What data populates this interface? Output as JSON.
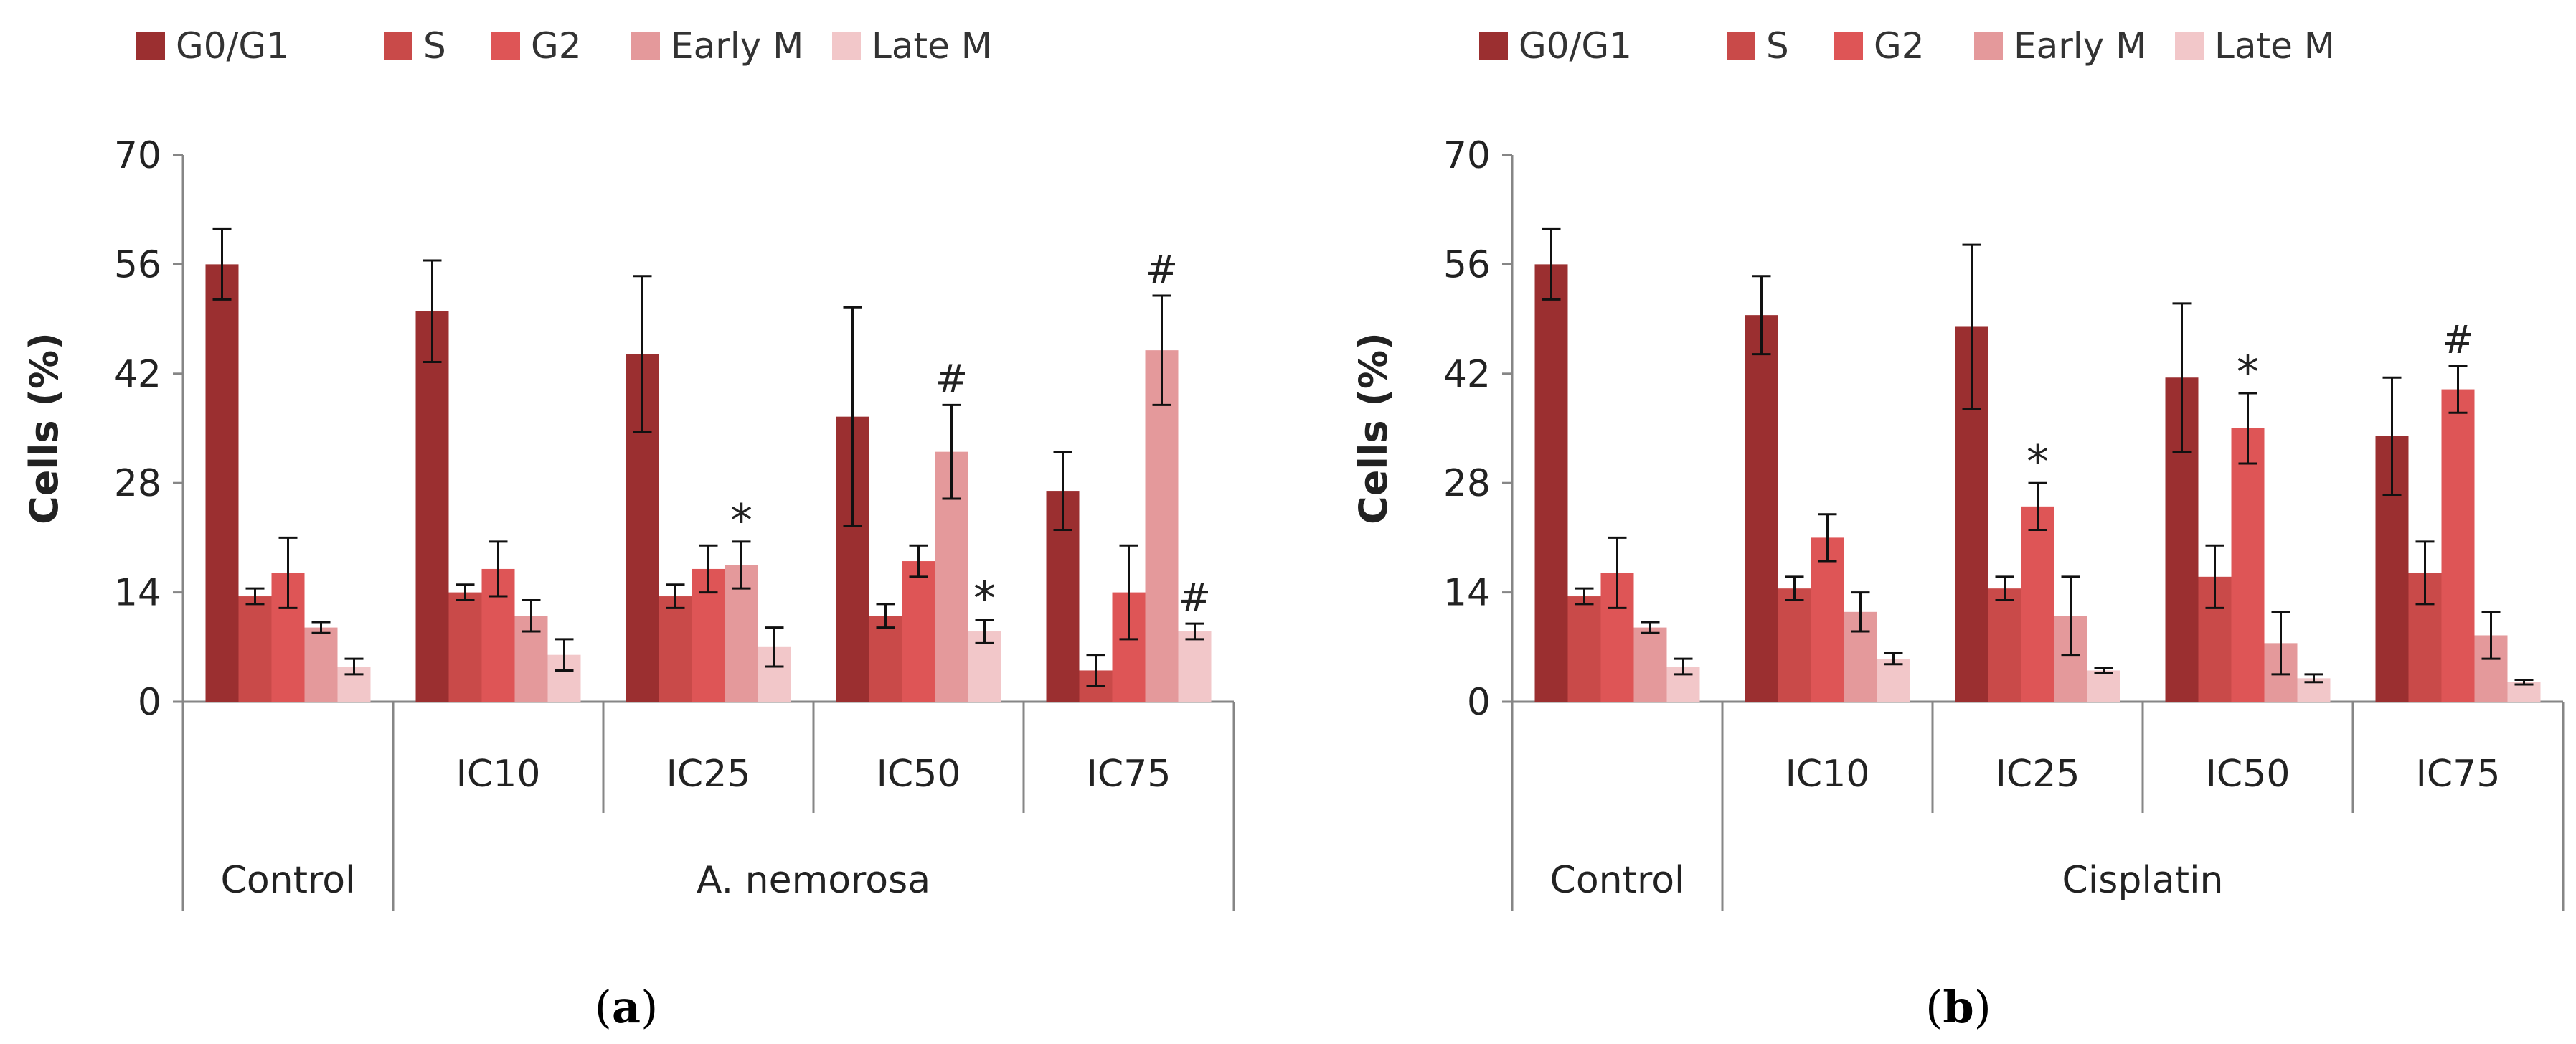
{
  "series_colors": [
    "#9b2f30",
    "#c94a49",
    "#de5556",
    "#e4999b",
    "#f2c7c9"
  ],
  "chart_data": [
    {
      "type": "bar",
      "panel_label": "a",
      "panel_label_open": "(",
      "panel_label_close": ")",
      "title": "",
      "xlabel": "",
      "ylabel": "Cells (%)",
      "ylim": [
        0,
        70
      ],
      "yticks": [
        "0",
        "14",
        "28",
        "42",
        "56",
        "70"
      ],
      "legend": [
        "G0/G1",
        "S",
        "G2",
        "Early M",
        "Late M"
      ],
      "group_labels": [
        "Control",
        "A. nemorosa"
      ],
      "categories": [
        "",
        "IC10",
        "IC25",
        "IC50",
        "IC75"
      ],
      "series": [
        {
          "name": "G0/G1",
          "values": [
            56,
            50,
            44.5,
            36.5,
            27
          ],
          "errors": [
            4.5,
            6.5,
            10,
            14,
            5
          ]
        },
        {
          "name": "S",
          "values": [
            13.5,
            14,
            13.5,
            11,
            4
          ],
          "errors": [
            1,
            1,
            1.5,
            1.5,
            2
          ]
        },
        {
          "name": "G2",
          "values": [
            16.5,
            17,
            17,
            18,
            14
          ],
          "errors": [
            4.5,
            3.5,
            3,
            2,
            6
          ]
        },
        {
          "name": "Early M",
          "values": [
            9.5,
            11,
            17.5,
            32,
            45
          ],
          "errors": [
            0.7,
            2,
            3,
            6,
            7
          ]
        },
        {
          "name": "Late M",
          "values": [
            4.5,
            6,
            7,
            9,
            9
          ],
          "errors": [
            1,
            2,
            2.5,
            1.5,
            1
          ]
        }
      ],
      "annotations": [
        {
          "series": "Early M",
          "category": "IC25",
          "text": "*"
        },
        {
          "series": "Early M",
          "category": "IC50",
          "text": "#"
        },
        {
          "series": "Late M",
          "category": "IC50",
          "text": "*"
        },
        {
          "series": "Early M",
          "category": "IC75",
          "text": "#"
        },
        {
          "series": "Late M",
          "category": "IC75",
          "text": "#"
        }
      ]
    },
    {
      "type": "bar",
      "panel_label": "b",
      "panel_label_open": "(",
      "panel_label_close": ")",
      "title": "",
      "xlabel": "",
      "ylabel": "Cells (%)",
      "ylim": [
        0,
        70
      ],
      "yticks": [
        "0",
        "14",
        "28",
        "42",
        "56",
        "70"
      ],
      "legend": [
        "G0/G1",
        "S",
        "G2",
        "Early M",
        "Late M"
      ],
      "group_labels": [
        "Control",
        "Cisplatin"
      ],
      "categories": [
        "",
        "IC10",
        "IC25",
        "IC50",
        "IC75"
      ],
      "series": [
        {
          "name": "G0/G1",
          "values": [
            56,
            49.5,
            48,
            41.5,
            34
          ],
          "errors": [
            4.5,
            5,
            10.5,
            9.5,
            7.5
          ]
        },
        {
          "name": "S",
          "values": [
            13.5,
            14.5,
            14.5,
            16,
            16.5
          ],
          "errors": [
            1,
            1.5,
            1.5,
            4,
            4
          ]
        },
        {
          "name": "G2",
          "values": [
            16.5,
            21,
            25,
            35,
            40
          ],
          "errors": [
            4.5,
            3,
            3,
            4.5,
            3
          ]
        },
        {
          "name": "Early M",
          "values": [
            9.5,
            11.5,
            11,
            7.5,
            8.5
          ],
          "errors": [
            0.7,
            2.5,
            5,
            4,
            3
          ]
        },
        {
          "name": "Late M",
          "values": [
            4.5,
            5.5,
            4,
            3,
            2.5
          ],
          "errors": [
            1,
            0.7,
            0.3,
            0.5,
            0.3
          ]
        }
      ],
      "annotations": [
        {
          "series": "G2",
          "category": "IC25",
          "text": "*"
        },
        {
          "series": "G2",
          "category": "IC50",
          "text": "*"
        },
        {
          "series": "G2",
          "category": "IC75",
          "text": "#"
        }
      ]
    }
  ]
}
